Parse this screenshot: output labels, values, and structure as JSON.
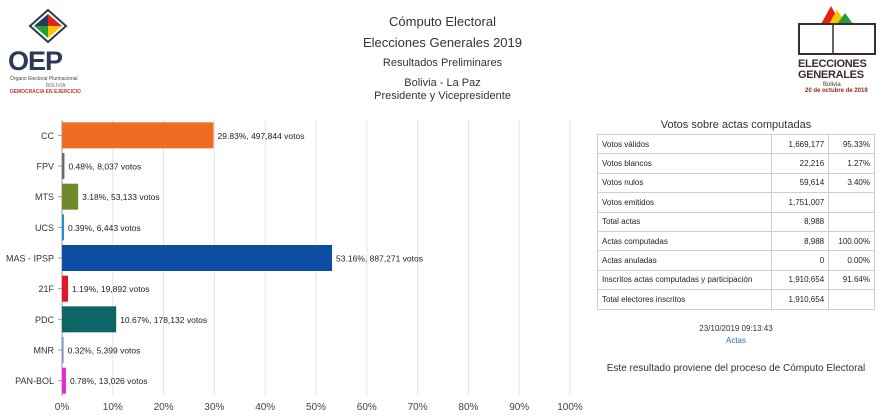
{
  "header": {
    "title": "Cómputo Electoral",
    "subtitle": "Elecciones Generales 2019",
    "results_type": "Resultados Preliminares",
    "location": "Bolivia - La Paz",
    "race": "Presidente y Vicepresidente"
  },
  "logos": {
    "oep_letters": "OEP",
    "oep_subtitle": "Órgano Electoral Plurinacional",
    "oep_country": "BOLIVIA",
    "oep_tagline": "DEMOCRACIA EN EJERCICIO",
    "elections_line1": "ELECCIONES",
    "elections_line2": "GENERALES",
    "elections_country": "Bolivia",
    "elections_date": "20 de octubre de 2019"
  },
  "chart_data": {
    "type": "bar",
    "orientation": "horizontal",
    "categories": [
      "CC",
      "FPV",
      "MTS",
      "UCS",
      "MAS - IPSP",
      "21F",
      "PDC",
      "MNR",
      "PAN-BOL"
    ],
    "values": [
      29.83,
      0.48,
      3.18,
      0.39,
      53.16,
      1.19,
      10.67,
      0.32,
      0.78
    ],
    "labels": [
      "29.83%,  497,844 votos",
      "0.48%,  8,037 votos",
      "3.18%,  53,133 votos",
      "0.39%,  6,443 votos",
      "53.16%,  887,271 votos",
      "1.19%,  19,892 votos",
      "10.67%,  178,132 votos",
      "0.32%,  5,399 votos",
      "0.78%,  13,026 votos"
    ],
    "colors": [
      "#f06b23",
      "#6b6b6b",
      "#6e8a2c",
      "#1e90d6",
      "#0b4ea2",
      "#e0172b",
      "#0e6566",
      "#7e9bc2",
      "#e22bd2"
    ],
    "xlim": [
      0,
      100
    ],
    "xticks": [
      "0%",
      "10%",
      "20%",
      "30%",
      "40%",
      "50%",
      "60%",
      "70%",
      "80%",
      "90%",
      "100%"
    ],
    "grid": true
  },
  "stats": {
    "title": "Votos sobre actas computadas",
    "rows": [
      {
        "label": "Votos válidos",
        "value": "1,669,177",
        "pct": "95.33%"
      },
      {
        "label": "Votos blancos",
        "value": "22,216",
        "pct": "1.27%"
      },
      {
        "label": "Votos nulos",
        "value": "59,614",
        "pct": "3.40%"
      },
      {
        "label": "Votos emitidos",
        "value": "1,751,007",
        "pct": ""
      },
      {
        "label": "Total actas",
        "value": "8,988",
        "pct": ""
      },
      {
        "label": "Actas computadas",
        "value": "8,988",
        "pct": "100.00%"
      },
      {
        "label": "Actas anuladas",
        "value": "0",
        "pct": "0.00%"
      },
      {
        "label": "Inscritos actas computadas y participación",
        "value": "1,910,654",
        "pct": "91.64%"
      },
      {
        "label": "Total electores inscritos",
        "value": "1,910,654",
        "pct": ""
      }
    ]
  },
  "footer": {
    "timestamp": "23/10/2019 09:13:43",
    "link_label": "Actas",
    "note": "Este resultado proviene del proceso de Cómputo Electoral"
  }
}
